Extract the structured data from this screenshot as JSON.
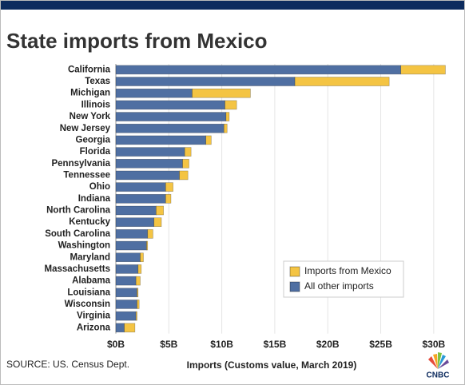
{
  "chart_data": {
    "type": "stacked-bar-horizontal",
    "title": "State imports from Mexico",
    "categories": [
      "California",
      "Texas",
      "Michigan",
      "Illinois",
      "New York",
      "New Jersey",
      "Georgia",
      "Florida",
      "Pennsylvania",
      "Tennessee",
      "Ohio",
      "Indiana",
      "North Carolina",
      "Kentucky",
      "South Carolina",
      "Washington",
      "Maryland",
      "Massachusetts",
      "Alabama",
      "Louisiana",
      "Wisconsin",
      "Virginia",
      "Arizona"
    ],
    "series": [
      {
        "name": "All other imports",
        "color": "#4f6fa2",
        "values": [
          26.9,
          16.9,
          7.2,
          10.3,
          10.4,
          10.2,
          8.5,
          6.5,
          6.3,
          6.0,
          4.7,
          4.7,
          3.8,
          3.6,
          3.0,
          2.9,
          2.3,
          2.1,
          1.9,
          2.0,
          2.0,
          1.9,
          0.8
        ]
      },
      {
        "name": "Imports from Mexico",
        "color": "#f4c443",
        "values": [
          4.2,
          8.9,
          5.5,
          1.1,
          0.3,
          0.3,
          0.5,
          0.6,
          0.6,
          0.8,
          0.7,
          0.5,
          0.7,
          0.7,
          0.5,
          0.1,
          0.3,
          0.3,
          0.4,
          0.1,
          0.2,
          0.1,
          1.0
        ]
      }
    ],
    "xlim": [
      0,
      32.5
    ],
    "xticks": [
      {
        "value": 0,
        "label": "$0B"
      },
      {
        "value": 5,
        "label": "$5B"
      },
      {
        "value": 10,
        "label": "$10B"
      },
      {
        "value": 15,
        "label": "$15B"
      },
      {
        "value": 20,
        "label": "$20B"
      },
      {
        "value": 25,
        "label": "$25B"
      },
      {
        "value": 30,
        "label": "$30B"
      }
    ],
    "xlabel": "Imports (Customs value, March 2019)",
    "source": "SOURCE: US. Census Dept.",
    "logo": "CNBC",
    "grid": true,
    "legend": "lower right"
  }
}
